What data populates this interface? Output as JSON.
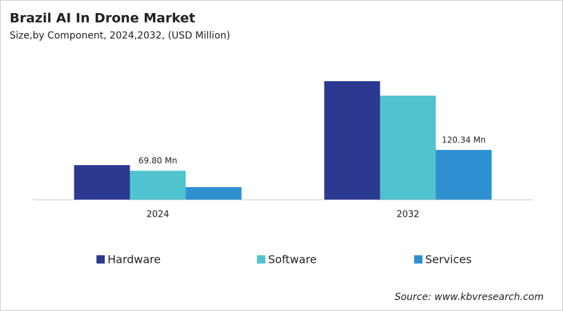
{
  "chart_data": {
    "type": "bar",
    "title": "Brazil AI In Drone Market",
    "subtitle": "Size,by Component, 2024,2032, (USD Million)",
    "source": "Source: www.kbvresearch.com",
    "categories": [
      "2024",
      "2032"
    ],
    "series": [
      {
        "name": "Hardware",
        "color": "#2b3990",
        "values": [
          83.4,
          287
        ]
      },
      {
        "name": "Software",
        "color": "#4fc4cf",
        "values": [
          69.8,
          252
        ],
        "value_labels": [
          "69.80  Mn",
          null
        ]
      },
      {
        "name": "Services",
        "color": "#2e90d0",
        "values": [
          30,
          120.34
        ],
        "value_labels": [
          null,
          "120.34  Mn"
        ]
      }
    ]
  }
}
